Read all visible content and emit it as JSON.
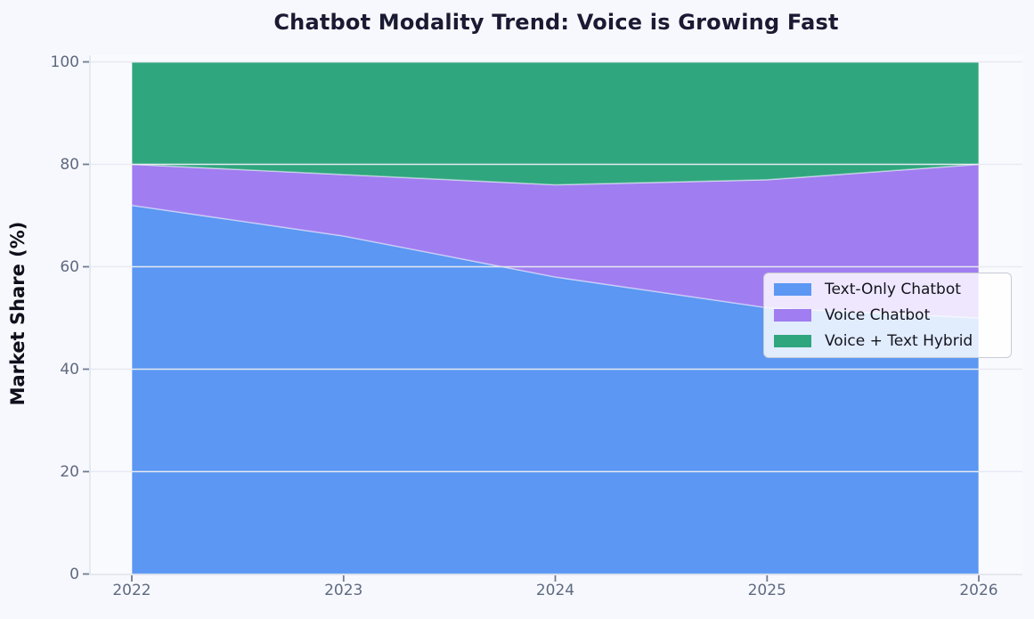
{
  "figure": {
    "background": "#f7f8fd",
    "plot_background": "#f9fafe",
    "title_color": "#1a1a33",
    "tick_label_color": "#5e6a80",
    "axis_label_color": "#10101c",
    "gridline_color": "#e7eaf2",
    "spine_color": "#dfe2ea",
    "tick_mark_color": "#707c91",
    "legend_text_color": "#14141e"
  },
  "chart_data": {
    "type": "area",
    "stacked": true,
    "title": "Chatbot Modality Trend: Voice is Growing Fast",
    "xlabel": "",
    "ylabel": "Market Share (%)",
    "x": [
      2022,
      2023,
      2024,
      2025,
      2026
    ],
    "x_tick_labels": [
      "2022",
      "2023",
      "2024",
      "2025",
      "2026"
    ],
    "y_ticks": [
      0,
      20,
      40,
      60,
      80,
      100
    ],
    "y_tick_labels": [
      "0",
      "20",
      "40",
      "60",
      "80",
      "100"
    ],
    "ylim": [
      0,
      100
    ],
    "grid": true,
    "grid_over_data": true,
    "legend_position": "center-right",
    "series": [
      {
        "name": "Text-Only Chatbot",
        "color": "#5b97f3",
        "values": [
          72,
          66,
          58,
          52,
          50
        ]
      },
      {
        "name": "Voice Chatbot",
        "color": "#a07df0",
        "values": [
          8,
          12,
          18,
          25,
          30
        ]
      },
      {
        "name": "Voice + Text Hybrid",
        "color": "#2fa67e",
        "values": [
          20,
          22,
          24,
          23,
          20
        ]
      }
    ],
    "totals": [
      100,
      100,
      100,
      100,
      100
    ]
  }
}
